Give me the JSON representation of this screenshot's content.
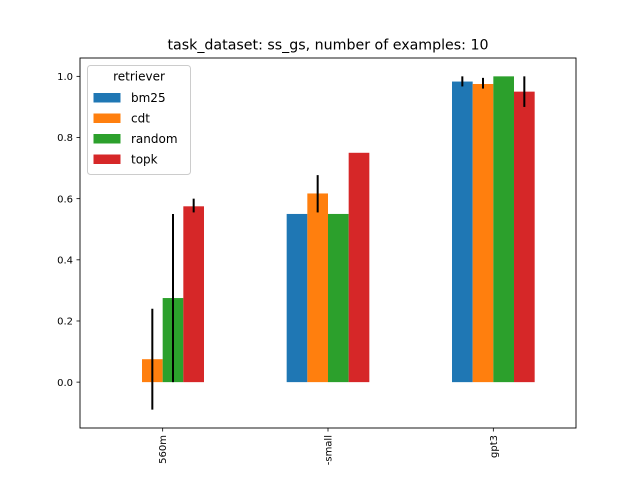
{
  "chart_data": {
    "type": "bar",
    "title": "task_dataset: ss_gs, number of examples: 10",
    "xlabel": "",
    "ylabel": "",
    "categories": [
      "560m",
      "-small",
      "gpt3"
    ],
    "ylim": [
      -0.15,
      1.06
    ],
    "yticks": [
      0.0,
      0.2,
      0.4,
      0.6,
      0.8,
      1.0
    ],
    "ytick_labels": [
      "0.0",
      "0.2",
      "0.4",
      "0.6",
      "0.8",
      "1.0"
    ],
    "grid": false,
    "legend": {
      "title": "retriever",
      "placement": "top-left"
    },
    "series": [
      {
        "name": "bm25",
        "color": "#1f77b4",
        "values": [
          null,
          0.55,
          0.983
        ],
        "err_low": [
          null,
          null,
          0.967
        ],
        "err_high": [
          null,
          null,
          1.0
        ]
      },
      {
        "name": "cdt",
        "color": "#ff7f0e",
        "values": [
          0.075,
          0.617,
          0.975
        ],
        "err_low": [
          -0.09,
          0.555,
          0.96
        ],
        "err_high": [
          0.24,
          0.677,
          0.995
        ]
      },
      {
        "name": "random",
        "color": "#2ca02c",
        "values": [
          0.275,
          0.55,
          1.0
        ],
        "err_low": [
          0.0,
          null,
          null
        ],
        "err_high": [
          0.55,
          null,
          null
        ]
      },
      {
        "name": "topk",
        "color": "#d62728",
        "values": [
          0.575,
          0.75,
          0.95
        ],
        "err_low": [
          0.555,
          null,
          0.9
        ],
        "err_high": [
          0.6,
          null,
          1.0
        ]
      }
    ]
  }
}
